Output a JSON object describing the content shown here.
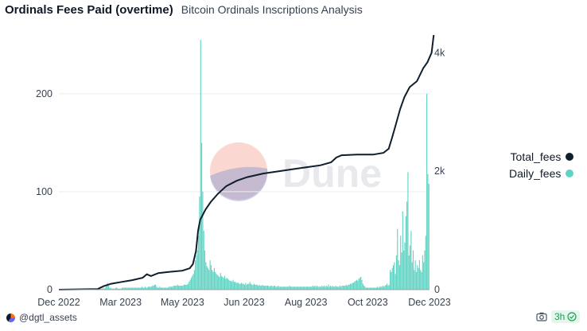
{
  "header": {
    "title": "Ordinals Fees Paid (overtime)",
    "subtitle": "Bitcoin Ordinals Inscriptions Analysis"
  },
  "watermark": {
    "text": "Dune"
  },
  "footer": {
    "author": "@dgtl_assets",
    "refresh_time": "3h",
    "icons": [
      "camera-icon",
      "check-circle-icon"
    ]
  },
  "colors": {
    "daily_fees": "#5fd4c4",
    "total_fees": "#0f1e2e",
    "grid": "#ebedf0"
  },
  "chart_data": {
    "type": "bar+line",
    "title": "Ordinals Fees Paid (overtime)",
    "legend_position": "right",
    "x_ticks": [
      "Dec 2022",
      "Mar 2023",
      "May 2023",
      "Jun 2023",
      "Aug 2023",
      "Oct 2023",
      "Dec 2023"
    ],
    "y_left": {
      "ticks": [
        "0",
        "100",
        "200"
      ],
      "range": [
        0,
        260
      ]
    },
    "y_right": {
      "ticks": [
        "0",
        "2k",
        "4k"
      ],
      "range": [
        0,
        4300
      ]
    },
    "series": [
      {
        "name": "Daily_fees",
        "type": "bar",
        "axis": "left",
        "values": [
          0,
          0,
          0,
          0,
          0,
          0,
          0,
          0,
          0,
          0,
          0,
          0,
          0,
          0,
          0,
          0,
          0,
          0,
          0,
          0,
          0,
          0,
          0,
          0,
          0,
          0,
          0,
          0,
          0,
          0,
          0,
          0,
          0,
          0,
          0,
          0,
          0,
          1,
          1,
          1,
          1,
          1,
          2,
          1,
          2,
          5,
          7,
          4,
          2,
          2,
          1,
          1,
          1,
          1,
          2,
          2,
          1,
          1,
          1,
          1,
          2,
          2,
          2,
          2,
          2,
          2,
          2,
          2,
          2,
          2,
          2,
          2,
          2,
          2,
          2,
          2,
          2,
          2,
          2,
          3,
          2,
          2,
          3,
          2,
          2,
          3,
          3,
          3,
          3,
          4,
          4,
          5,
          5,
          3,
          2,
          2,
          3,
          2,
          2,
          2,
          2,
          2,
          2,
          2,
          2,
          3,
          3,
          3,
          3,
          4,
          4,
          4,
          4,
          5,
          4,
          4,
          4,
          4,
          4,
          5,
          5,
          5,
          5,
          6,
          8,
          10,
          12,
          14,
          16,
          20,
          30,
          35,
          40,
          55,
          95,
          255,
          150,
          100,
          60,
          40,
          28,
          24,
          22,
          20,
          30,
          25,
          20,
          18,
          22,
          18,
          16,
          15,
          14,
          13,
          17,
          14,
          13,
          12,
          14,
          11,
          12,
          11,
          10,
          9,
          9,
          8,
          10,
          8,
          8,
          7,
          7,
          7,
          6,
          6,
          7,
          6,
          6,
          5,
          7,
          5,
          6,
          6,
          8,
          6,
          5,
          5,
          6,
          5,
          5,
          5,
          4,
          5,
          4,
          4,
          5,
          4,
          4,
          4,
          4,
          4,
          4,
          3,
          4,
          4,
          3,
          4,
          4,
          3,
          3,
          4,
          3,
          3,
          3,
          3,
          3,
          3,
          3,
          3,
          3,
          3,
          4,
          3,
          3,
          3,
          3,
          3,
          3,
          3,
          3,
          3,
          3,
          3,
          3,
          3,
          3,
          3,
          3,
          3,
          3,
          3,
          3,
          3,
          4,
          3,
          4,
          3,
          4,
          3,
          3,
          3,
          3,
          4,
          3,
          4,
          3,
          4,
          3,
          5,
          3,
          4,
          3,
          4,
          3,
          3,
          4,
          3,
          3,
          3,
          4,
          3,
          4,
          4,
          4,
          4,
          5,
          4,
          5,
          5,
          6,
          6,
          7,
          7,
          8,
          9,
          10,
          9,
          11,
          12,
          13,
          10,
          6,
          4,
          3,
          2,
          2,
          2,
          2,
          2,
          2,
          2,
          2,
          2,
          2,
          2,
          3,
          2,
          3,
          3,
          3,
          4,
          3,
          4,
          5,
          6,
          4,
          5,
          20,
          18,
          22,
          25,
          28,
          16,
          35,
          62,
          30,
          25,
          55,
          38,
          80,
          40,
          48,
          75,
          90,
          120,
          35,
          45,
          60,
          28,
          40,
          20,
          30,
          18,
          25,
          22,
          30,
          20,
          18,
          35,
          28,
          40,
          55,
          200,
          118,
          108
        ]
      },
      {
        "name": "Total_fees",
        "type": "line",
        "axis": "right",
        "points": [
          [
            0,
            0
          ],
          [
            37,
            10
          ],
          [
            43,
            60
          ],
          [
            50,
            100
          ],
          [
            60,
            130
          ],
          [
            70,
            160
          ],
          [
            80,
            200
          ],
          [
            84,
            260
          ],
          [
            88,
            230
          ],
          [
            95,
            280
          ],
          [
            105,
            300
          ],
          [
            118,
            320
          ],
          [
            125,
            360
          ],
          [
            128,
            430
          ],
          [
            131,
            650
          ],
          [
            133,
            1000
          ],
          [
            135,
            1180
          ],
          [
            140,
            1350
          ],
          [
            145,
            1480
          ],
          [
            152,
            1620
          ],
          [
            160,
            1750
          ],
          [
            170,
            1840
          ],
          [
            180,
            1900
          ],
          [
            195,
            1960
          ],
          [
            210,
            2000
          ],
          [
            230,
            2050
          ],
          [
            250,
            2100
          ],
          [
            260,
            2150
          ],
          [
            265,
            2230
          ],
          [
            270,
            2270
          ],
          [
            285,
            2280
          ],
          [
            300,
            2280
          ],
          [
            310,
            2310
          ],
          [
            315,
            2380
          ],
          [
            318,
            2550
          ],
          [
            322,
            2800
          ],
          [
            326,
            3050
          ],
          [
            330,
            3250
          ],
          [
            335,
            3420
          ],
          [
            342,
            3520
          ],
          [
            348,
            3740
          ],
          [
            352,
            3840
          ],
          [
            356,
            4000
          ],
          [
            358,
            4300
          ]
        ]
      }
    ]
  }
}
